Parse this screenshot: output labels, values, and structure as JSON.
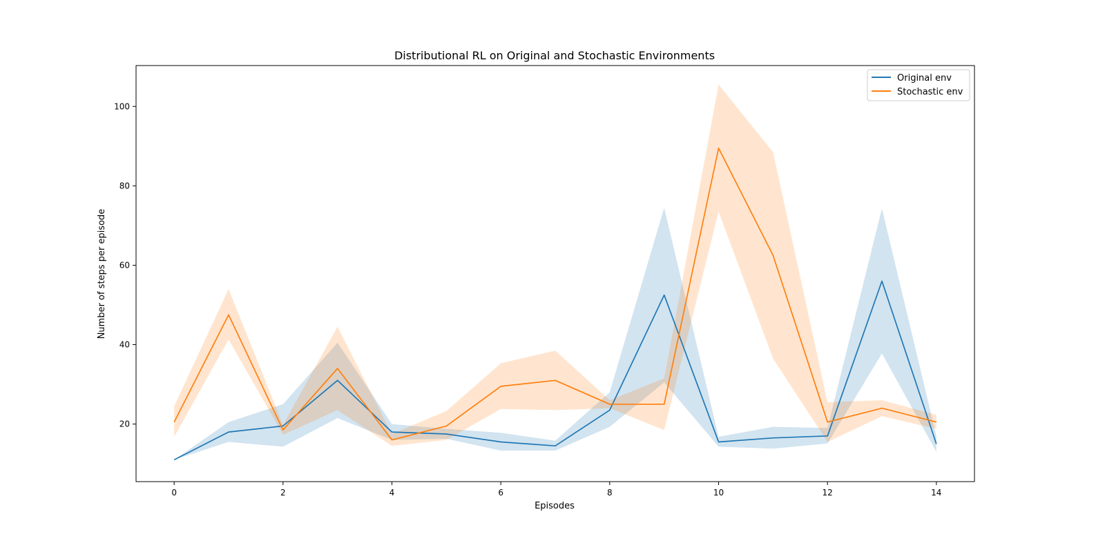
{
  "chart_data": {
    "type": "line",
    "title": "Distributional RL on Original and Stochastic Environments",
    "xlabel": "Episodes",
    "ylabel": "Number of steps per episode",
    "xlim": [
      -0.7,
      14.7
    ],
    "ylim": [
      5.5,
      110.3
    ],
    "xticks": [
      0,
      2,
      4,
      6,
      8,
      10,
      12,
      14
    ],
    "yticks": [
      20,
      40,
      60,
      80,
      100
    ],
    "legend_position": "top-right",
    "grid": false,
    "x": [
      0,
      1,
      2,
      3,
      4,
      5,
      6,
      7,
      8,
      9,
      10,
      11,
      12,
      13,
      14
    ],
    "series": [
      {
        "name": "Original env",
        "color": "#1f77b4",
        "values": [
          11,
          18,
          19.5,
          31,
          18,
          17.5,
          15.5,
          14.5,
          23.5,
          52.5,
          15.5,
          16.5,
          17,
          56,
          15
        ],
        "lower": [
          11,
          15.5,
          14.3,
          21.5,
          16,
          16.3,
          13.3,
          13.3,
          19.3,
          30.5,
          14.3,
          13.8,
          15.1,
          37.8,
          13
        ],
        "upper": [
          11,
          20.5,
          25,
          40.5,
          20,
          18.8,
          17.8,
          15.8,
          28,
          74.5,
          16.8,
          19.3,
          19,
          74.3,
          17
        ]
      },
      {
        "name": "Stochastic env",
        "color": "#ff7f0e",
        "values": [
          20.5,
          47.5,
          18.5,
          34,
          16,
          19.5,
          29.5,
          31,
          25,
          25,
          89.5,
          62.5,
          20.5,
          24,
          20.5
        ],
        "lower": [
          16.8,
          41.3,
          17.3,
          23.5,
          14.5,
          16,
          23.8,
          23.5,
          24,
          18.5,
          73.5,
          36.5,
          15.5,
          22,
          18.8
        ],
        "upper": [
          24.5,
          54,
          19.8,
          44.5,
          17.5,
          23.3,
          35.3,
          38.5,
          26,
          31.5,
          105.5,
          88.5,
          25.5,
          26,
          22.3
        ]
      }
    ]
  }
}
